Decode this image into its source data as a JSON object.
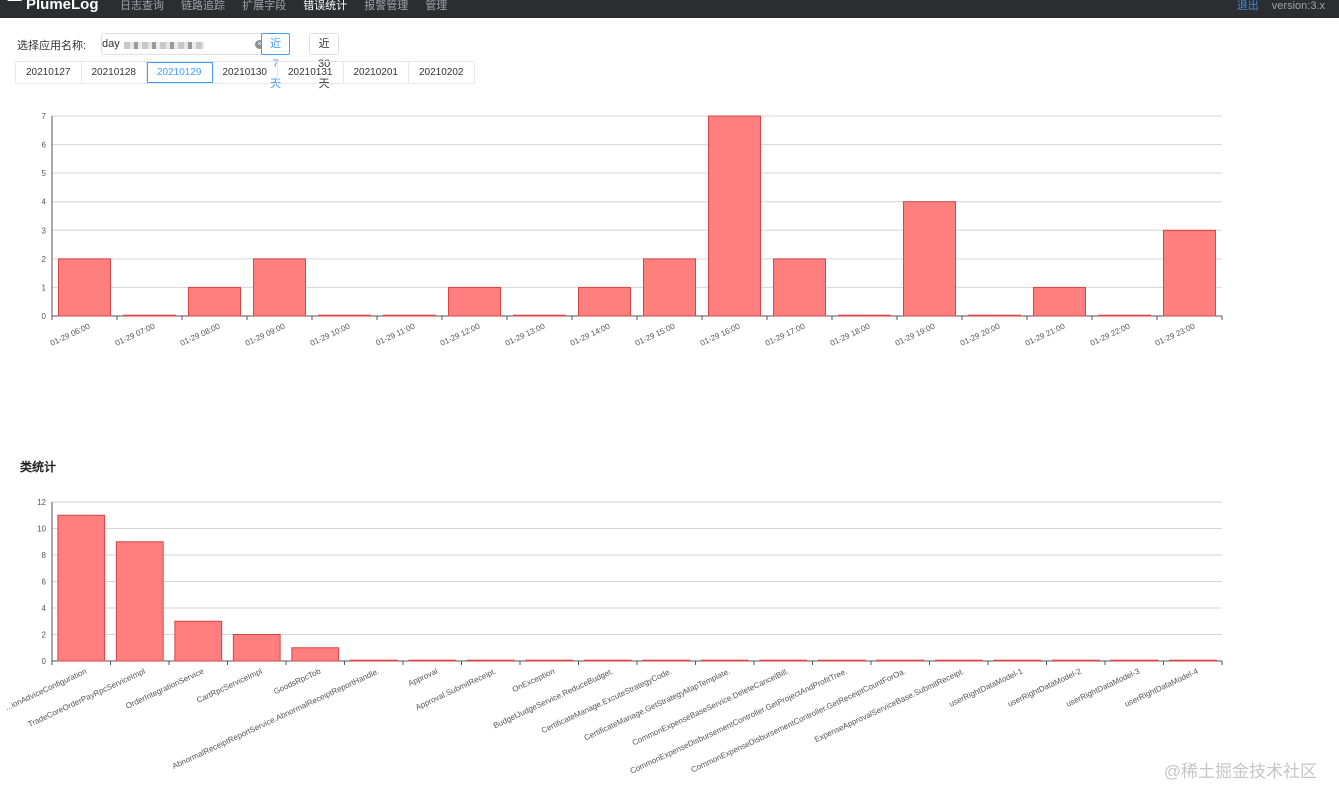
{
  "header": {
    "logo": "PlumeLog",
    "nav": [
      "日志查询",
      "链路追踪",
      "扩展字段",
      "错误统计",
      "报警管理",
      "管理"
    ],
    "active_nav": 3,
    "right_link": "退出",
    "version": "version:3.x"
  },
  "filters": {
    "app_label": "选择应用名称:",
    "app_value": "day",
    "range_buttons": [
      "近7天",
      "近30天"
    ],
    "active_range": 0
  },
  "dates": {
    "tabs": [
      "20210127",
      "20210128",
      "20210129",
      "20210130",
      "20210131",
      "20210201",
      "20210202"
    ],
    "active": 2
  },
  "section2_title": "类统计",
  "watermark": "@稀土掘金技术社区",
  "colors": {
    "bar_fill": "#ff7f7f",
    "bar_stroke": "#d64545",
    "accent": "#409eff"
  },
  "chart_data": [
    {
      "type": "bar",
      "categories": [
        "01-29 06:00",
        "01-29 07:00",
        "01-29 08:00",
        "01-29 09:00",
        "01-29 10:00",
        "01-29 11:00",
        "01-29 12:00",
        "01-29 13:00",
        "01-29 14:00",
        "01-29 15:00",
        "01-29 16:00",
        "01-29 17:00",
        "01-29 18:00",
        "01-29 19:00",
        "01-29 20:00",
        "01-29 21:00",
        "01-29 22:00",
        "01-29 23:00"
      ],
      "values": [
        2,
        0,
        1,
        2,
        0,
        0,
        1,
        0,
        1,
        2,
        7,
        2,
        0,
        4,
        0,
        1,
        0,
        3
      ],
      "yticks": [
        "0",
        "1",
        "2",
        "3",
        "4",
        "5",
        "6",
        "7"
      ],
      "ylim": [
        0,
        7
      ],
      "grid": true
    },
    {
      "type": "bar",
      "categories": [
        "...ionAdviceConfiguration",
        "TradeCoreOrderPayRpcServiceImpl",
        "OrderIntegrationService",
        "CartRpcServiceImpl",
        "GoodsRpcTob",
        "AbnormalReceiptReportService.AbnormalReceiptReportHandle.",
        "Approval",
        "Approval.SubmitReceipt.",
        "OnException",
        "BudgetJudgeService.ReduceBudget.",
        "CertificateManage.ExcuteStrategyCode.",
        "CertificateManage.GetStrategyMapTemplate.",
        "CommonExpenseBaseService.DeleteCancelBill.",
        "CommonExpenseDisbursementController.GetProjectAndProfitTree.",
        "CommonExpenseDisbursementController.GetReceiptCountForOa.",
        "ExpenseApprovalServiceBase.SubmitReceipt.",
        "userRightDataModel-1",
        "userRightDataModel-2",
        "userRightDataModel-3",
        "userRightDataModel-4"
      ],
      "values": [
        11,
        9,
        3,
        2,
        1,
        0,
        0,
        0,
        0,
        0,
        0,
        0,
        0,
        0,
        0,
        0,
        0,
        0,
        0,
        0
      ],
      "yticks": [
        "0",
        "2",
        "4",
        "6",
        "8",
        "10",
        "12"
      ],
      "ylim": [
        0,
        12
      ],
      "grid": true
    }
  ]
}
